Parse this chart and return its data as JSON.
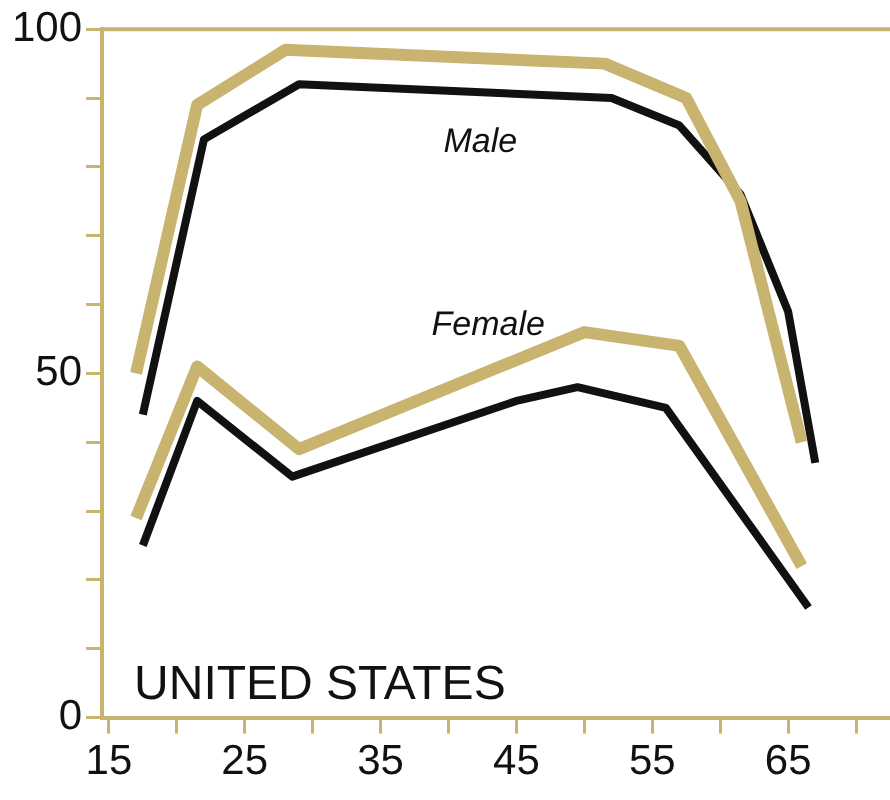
{
  "chart_data": {
    "type": "line",
    "title": "UNITED STATES",
    "xlim": [
      14.5,
      72.5
    ],
    "xticks": [
      15,
      {
        "value": 20,
        "label": null
      },
      25,
      {
        "value": 30,
        "label": null
      },
      35,
      {
        "value": 40,
        "label": null
      },
      45,
      {
        "value": 50,
        "label": null
      },
      55,
      {
        "value": 60,
        "label": null
      },
      65,
      {
        "value": 70,
        "label": null
      }
    ],
    "ylim": [
      0,
      100
    ],
    "yticks": [
      0,
      {
        "value": 10,
        "label": null
      },
      {
        "value": 20,
        "label": null
      },
      {
        "value": 30,
        "label": null
      },
      {
        "value": 40,
        "label": null
      },
      50,
      {
        "value": 60,
        "label": null
      },
      {
        "value": 70,
        "label": null
      },
      {
        "value": 80,
        "label": null
      },
      {
        "value": 90,
        "label": null
      },
      100
    ],
    "series": [
      {
        "color": "#c8b46e",
        "x": [
          17,
          21.5,
          28,
          51.5,
          57.5,
          61.5,
          66
        ],
        "values": [
          50,
          89,
          97,
          95,
          90,
          75,
          40
        ]
      },
      {
        "color": "#111111",
        "x": [
          17.5,
          22,
          29,
          52,
          57,
          61.5,
          65,
          67
        ],
        "values": [
          44,
          84,
          92,
          90,
          86,
          76,
          59,
          37
        ]
      },
      {
        "color": "#c8b46e",
        "x": [
          17,
          21.5,
          29,
          50,
          57,
          66
        ],
        "values": [
          29,
          51,
          39,
          56,
          54,
          22
        ]
      },
      {
        "color": "#111111",
        "x": [
          17.5,
          21.5,
          28.5,
          45,
          49.5,
          56,
          66.5
        ],
        "values": [
          25,
          46,
          35,
          46,
          48,
          45,
          16
        ]
      }
    ],
    "annotations": [
      "Male",
      "Female"
    ],
    "grid": false,
    "legend": false,
    "marker": "none",
    "line_style": "solid"
  }
}
